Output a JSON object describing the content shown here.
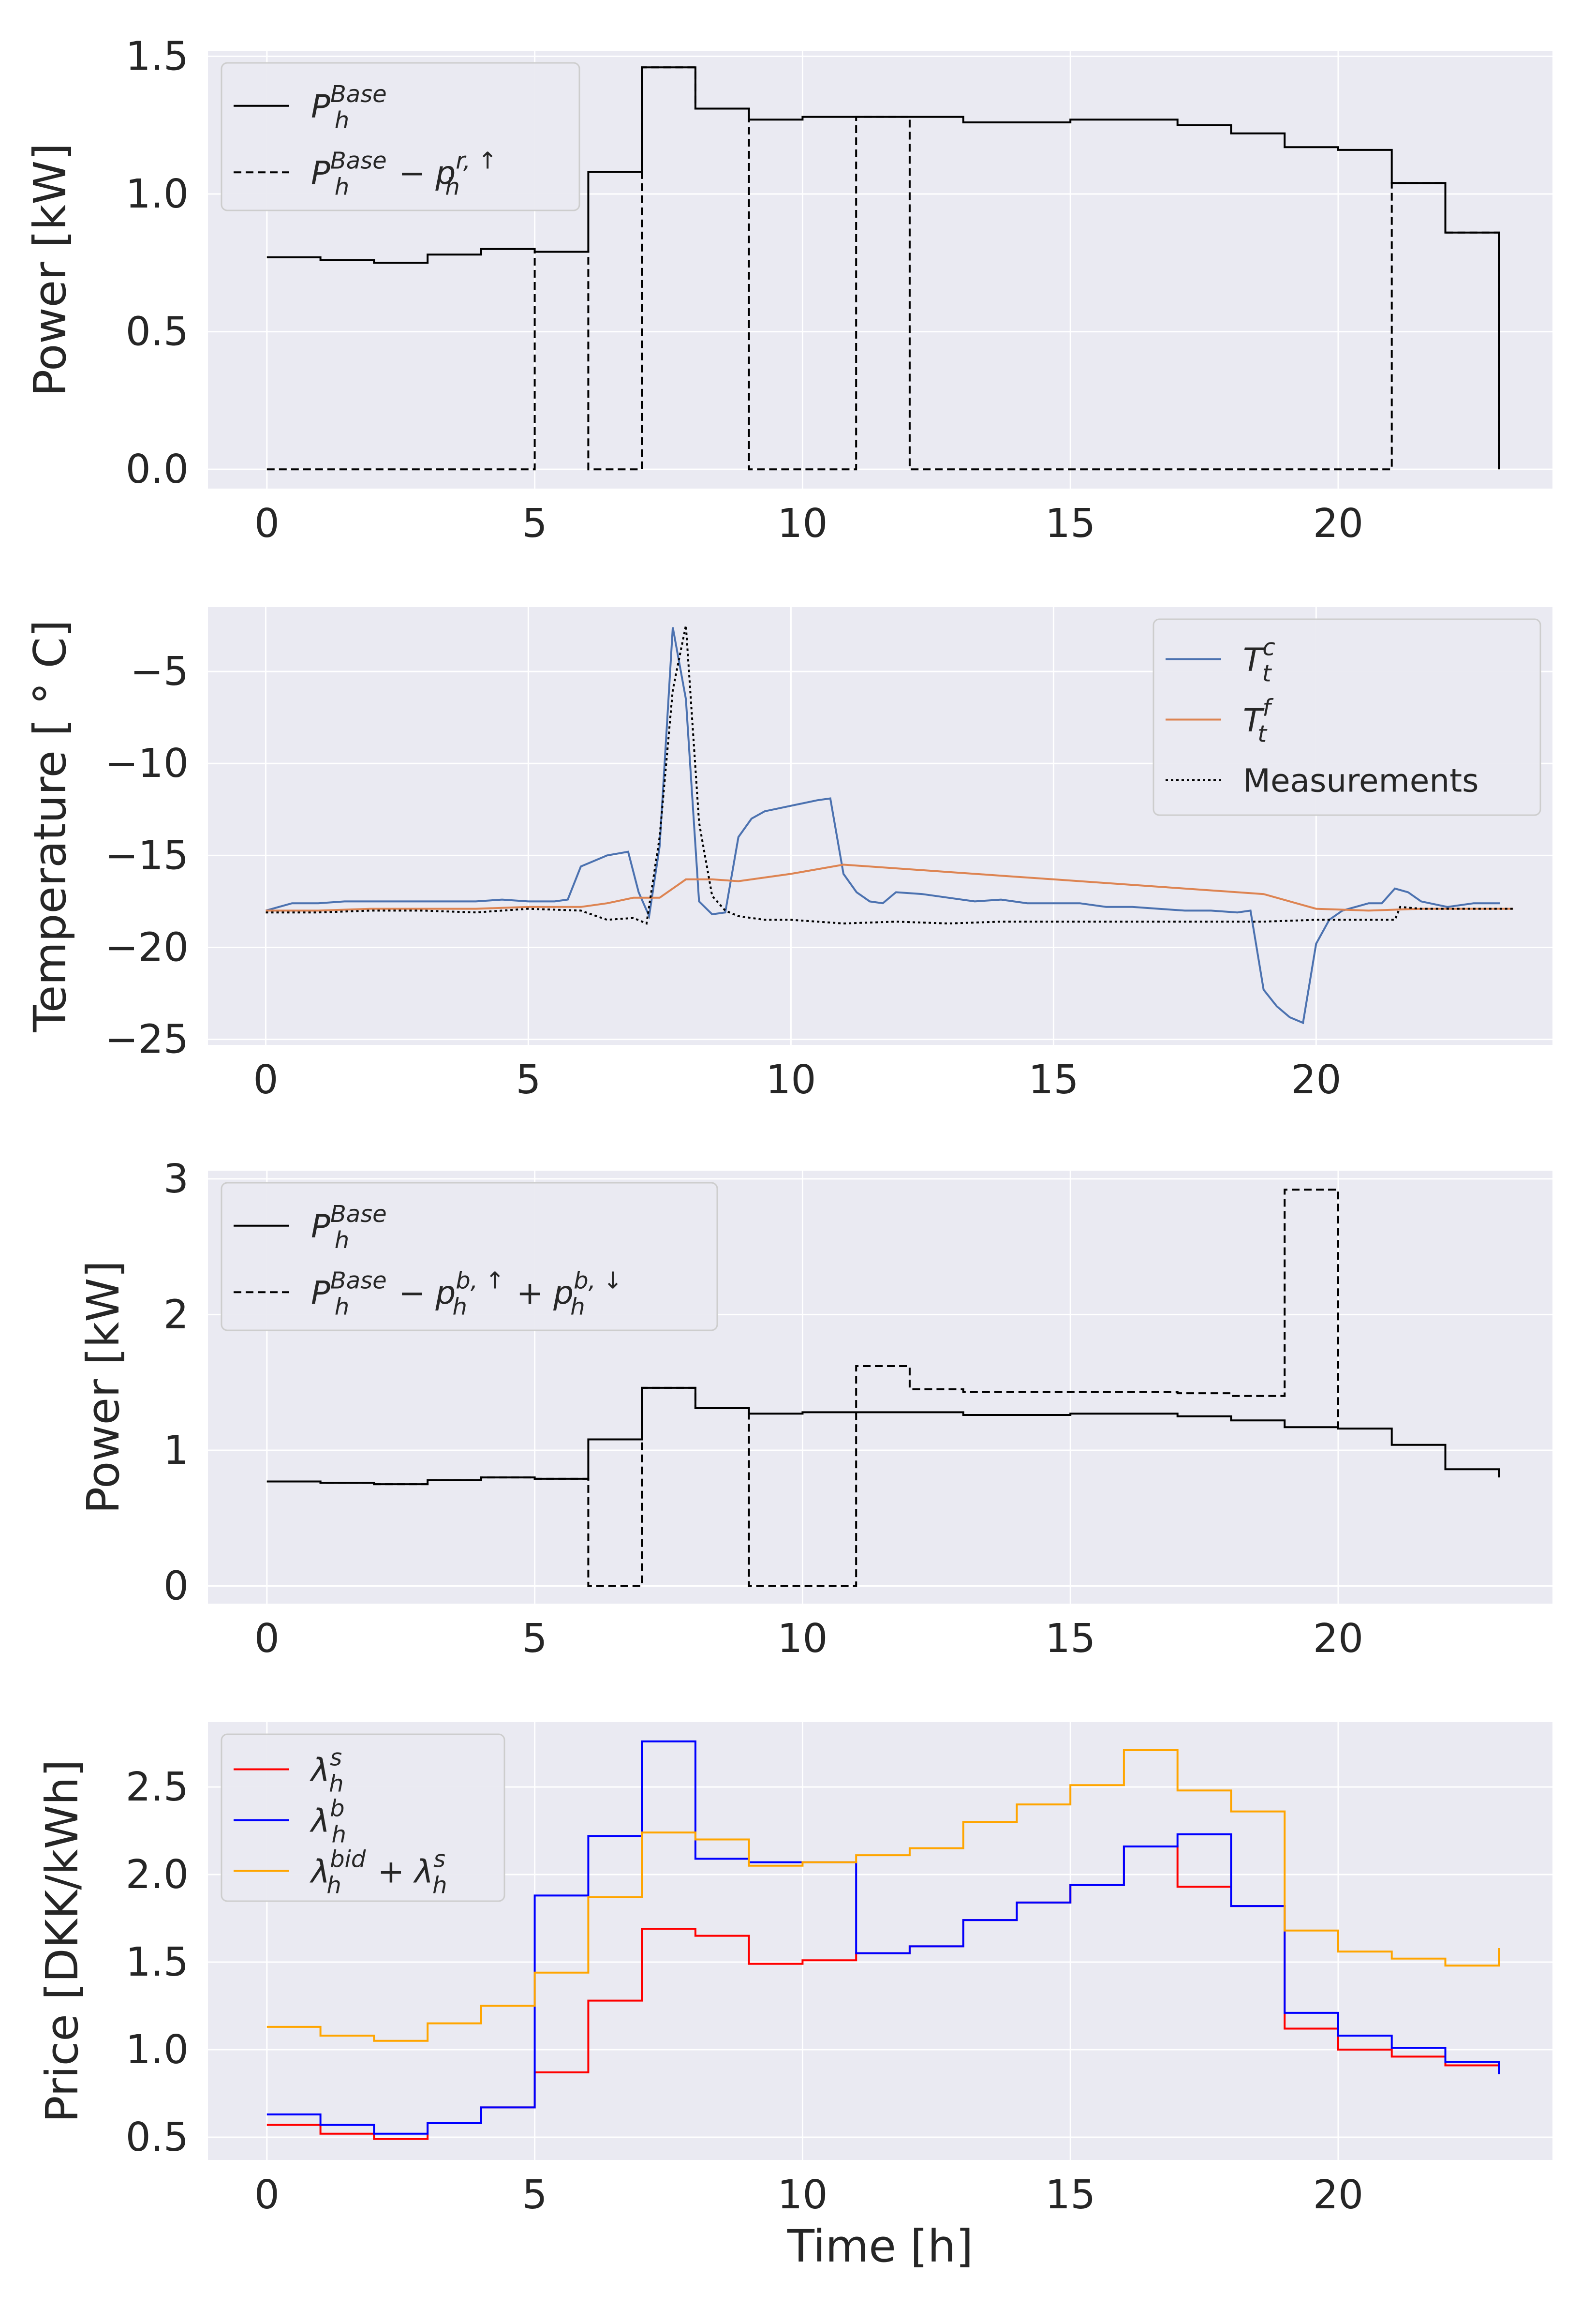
{
  "chart_data": [
    {
      "type": "line",
      "title": "",
      "xlabel": "",
      "ylabel": "Power [kW]",
      "xlim": [
        -1.1,
        24
      ],
      "ylim": [
        -0.07,
        1.52
      ],
      "xticks": [
        0,
        5,
        10,
        15,
        20
      ],
      "xtick_labels": [
        "0",
        "5",
        "10",
        "15",
        "20"
      ],
      "yticks": [
        0.0,
        0.5,
        1.0,
        1.5
      ],
      "ytick_labels": [
        "0.0",
        "0.5",
        "1.0",
        "1.5"
      ],
      "legend_position": "top-left",
      "series": [
        {
          "name": "P_h^Base",
          "legend_label": "P",
          "legend_sup": "Base",
          "legend_sub": "h",
          "legend_rest": "",
          "style": "solid",
          "color": "#000000",
          "draw": "step",
          "x": [
            0,
            1,
            2,
            3,
            4,
            5,
            6,
            7,
            8,
            9,
            10,
            11,
            12,
            13,
            14,
            15,
            16,
            17,
            18,
            19,
            20,
            21,
            22,
            23
          ],
          "values": [
            0.77,
            0.76,
            0.75,
            0.78,
            0.8,
            0.79,
            1.08,
            1.46,
            1.31,
            1.27,
            1.28,
            1.28,
            1.28,
            1.26,
            1.26,
            1.27,
            1.27,
            1.25,
            1.22,
            1.17,
            1.16,
            1.04,
            0.86,
            0.0
          ]
        },
        {
          "name": "P_h^Base - p_h^r,up",
          "legend_label": "P",
          "legend_sup": "Base",
          "legend_sub": "h",
          "legend_rest": " − p",
          "legend_sup2": "r, ↑",
          "legend_sub2": "h",
          "style": "dashed",
          "color": "#000000",
          "draw": "step",
          "x": [
            0,
            1,
            2,
            3,
            4,
            5,
            6,
            7,
            8,
            9,
            10,
            11,
            12,
            13,
            14,
            15,
            16,
            17,
            18,
            19,
            20,
            21,
            22,
            23
          ],
          "values": [
            0,
            0,
            0,
            0,
            0,
            0.79,
            0,
            1.46,
            1.31,
            0,
            0,
            1.28,
            0,
            0,
            0,
            0,
            0,
            0,
            0,
            0,
            0,
            1.04,
            0.86,
            0.0
          ]
        }
      ]
    },
    {
      "type": "line",
      "title": "",
      "xlabel": "",
      "ylabel": "Temperature [ ° C]",
      "xlim": [
        -1.1,
        24.5
      ],
      "ylim": [
        -25.3,
        -1.5
      ],
      "xticks": [
        0,
        5,
        10,
        15,
        20
      ],
      "xtick_labels": [
        "0",
        "5",
        "10",
        "15",
        "20"
      ],
      "yticks": [
        -5,
        -10,
        -15,
        -20,
        -25
      ],
      "ytick_labels": [
        "−5",
        "−10",
        "−15",
        "−20",
        "−25"
      ],
      "legend_position": "top-right",
      "series": [
        {
          "name": "T_t^c",
          "legend_label": "T",
          "legend_sup": "c",
          "legend_sub": "t",
          "style": "solid",
          "color": "#4c72b0",
          "draw": "line",
          "x": [
            0,
            0.25,
            0.5,
            0.75,
            1,
            1.5,
            2,
            2.5,
            3,
            3.5,
            4,
            4.5,
            5,
            5.5,
            5.75,
            6,
            6.5,
            6.9,
            7.1,
            7.3,
            7.5,
            7.75,
            8,
            8.25,
            8.5,
            8.75,
            9,
            9.25,
            9.5,
            10,
            10.5,
            10.75,
            11,
            11.25,
            11.5,
            11.75,
            12,
            12.5,
            13,
            13.5,
            14,
            14.5,
            15,
            15.5,
            16,
            16.5,
            17,
            17.5,
            18,
            18.5,
            18.75,
            19,
            19.25,
            19.5,
            19.75,
            20,
            20.25,
            20.5,
            20.75,
            21,
            21.25,
            21.5,
            21.75,
            22,
            22.5,
            23,
            23.5
          ],
          "values": [
            -18,
            -17.8,
            -17.6,
            -17.6,
            -17.6,
            -17.5,
            -17.5,
            -17.5,
            -17.5,
            -17.5,
            -17.5,
            -17.4,
            -17.5,
            -17.5,
            -17.4,
            -15.6,
            -15,
            -14.8,
            -17,
            -18.3,
            -14.5,
            -2.6,
            -6.5,
            -17.5,
            -18.2,
            -18.1,
            -14,
            -13,
            -12.6,
            -12.3,
            -12,
            -11.9,
            -16,
            -17,
            -17.5,
            -17.6,
            -17,
            -17.1,
            -17.3,
            -17.5,
            -17.4,
            -17.6,
            -17.6,
            -17.6,
            -17.8,
            -17.8,
            -17.9,
            -18,
            -18,
            -18.1,
            -18,
            -22.3,
            -23.2,
            -23.8,
            -24.1,
            -19.8,
            -18.5,
            -18,
            -17.8,
            -17.6,
            -17.6,
            -16.8,
            -17,
            -17.5,
            -17.8,
            -17.6,
            -17.6
          ]
        },
        {
          "name": "T_t^f",
          "legend_label": "T",
          "legend_sup": "f",
          "legend_sub": "t",
          "style": "solid",
          "color": "#dd8452",
          "draw": "line",
          "x": [
            0,
            1,
            2,
            3,
            4,
            5,
            6,
            6.5,
            7,
            7.5,
            8,
            8.5,
            9,
            10,
            11,
            12,
            13,
            14,
            15,
            16,
            17,
            18,
            19,
            20,
            21,
            22,
            23,
            23.75
          ],
          "values": [
            -18,
            -18,
            -17.9,
            -17.9,
            -17.9,
            -17.8,
            -17.8,
            -17.6,
            -17.3,
            -17.3,
            -16.3,
            -16.3,
            -16.4,
            -16,
            -15.5,
            -15.7,
            -15.9,
            -16.1,
            -16.3,
            -16.5,
            -16.7,
            -16.9,
            -17.1,
            -17.9,
            -18,
            -17.9,
            -17.9,
            -17.9
          ]
        },
        {
          "name": "Measurements",
          "legend_label": "Measurements",
          "style": "dotted",
          "color": "#000000",
          "draw": "line",
          "x": [
            0,
            1,
            2,
            3,
            4,
            5,
            6,
            6.5,
            7,
            7.25,
            7.5,
            7.75,
            8,
            8.25,
            8.5,
            8.75,
            9,
            9.5,
            10,
            11,
            12,
            13,
            14,
            15,
            16,
            17,
            18,
            19,
            20,
            21,
            21.5,
            21.6,
            22,
            23,
            23.75
          ],
          "values": [
            -18.1,
            -18.1,
            -18,
            -18,
            -18.1,
            -17.9,
            -18,
            -18.5,
            -18.4,
            -18.7,
            -14,
            -6,
            -2.5,
            -13.2,
            -17.2,
            -18,
            -18.3,
            -18.5,
            -18.5,
            -18.7,
            -18.6,
            -18.7,
            -18.6,
            -18.6,
            -18.6,
            -18.6,
            -18.6,
            -18.6,
            -18.5,
            -18.5,
            -18.5,
            -17.8,
            -17.9,
            -17.9,
            -17.9
          ]
        }
      ]
    },
    {
      "type": "line",
      "title": "",
      "xlabel": "",
      "ylabel": "Power [kW]",
      "xlim": [
        -1.1,
        24
      ],
      "ylim": [
        -0.13,
        3.06
      ],
      "xticks": [
        0,
        5,
        10,
        15,
        20
      ],
      "xtick_labels": [
        "0",
        "5",
        "10",
        "15",
        "20"
      ],
      "yticks": [
        0,
        1,
        2,
        3
      ],
      "ytick_labels": [
        "0",
        "1",
        "2",
        "3"
      ],
      "legend_position": "top-left",
      "series": [
        {
          "name": "P_h^Base",
          "legend_label": "P",
          "legend_sup": "Base",
          "legend_sub": "h",
          "style": "solid",
          "color": "#000000",
          "draw": "step",
          "x": [
            0,
            1,
            2,
            3,
            4,
            5,
            6,
            7,
            8,
            9,
            10,
            11,
            12,
            13,
            14,
            15,
            16,
            17,
            18,
            19,
            20,
            21,
            22,
            23
          ],
          "values": [
            0.77,
            0.76,
            0.75,
            0.78,
            0.8,
            0.79,
            1.08,
            1.46,
            1.31,
            1.27,
            1.28,
            1.28,
            1.28,
            1.26,
            1.26,
            1.27,
            1.27,
            1.25,
            1.22,
            1.17,
            1.16,
            1.04,
            0.86,
            0.8
          ]
        },
        {
          "name": "P_h^Base - p_h^b,up + p_h^b,down",
          "legend_label": "P",
          "legend_sup": "Base",
          "legend_sub": "h",
          "legend_rest": " − p",
          "legend_sup2": "b, ↑",
          "legend_sub2": "h",
          "legend_rest2": " + p",
          "legend_sup3": "b, ↓",
          "legend_sub3": "h",
          "style": "dashed",
          "color": "#000000",
          "draw": "step",
          "x": [
            0,
            1,
            2,
            3,
            4,
            5,
            6,
            7,
            8,
            9,
            10,
            11,
            12,
            13,
            14,
            15,
            16,
            17,
            18,
            19,
            20
          ],
          "values": [
            0.77,
            0.76,
            0.75,
            0.78,
            0.8,
            0.79,
            0,
            1.46,
            1.31,
            0,
            0,
            1.62,
            1.45,
            1.43,
            1.43,
            1.43,
            1.43,
            1.42,
            1.4,
            2.92,
            1.16
          ]
        }
      ]
    },
    {
      "type": "line",
      "title": "",
      "xlabel": "Time [h]",
      "ylabel": "Price [DKK/kWh]",
      "xlim": [
        -1.1,
        24
      ],
      "ylim": [
        0.37,
        2.87
      ],
      "xticks": [
        0,
        5,
        10,
        15,
        20
      ],
      "xtick_labels": [
        "0",
        "5",
        "10",
        "15",
        "20"
      ],
      "yticks": [
        0.5,
        1.0,
        1.5,
        2.0,
        2.5
      ],
      "ytick_labels": [
        "0.5",
        "1.0",
        "1.5",
        "2.0",
        "2.5"
      ],
      "legend_position": "top-left",
      "series": [
        {
          "name": "lambda_h^s",
          "legend_label": "λ",
          "legend_sup": "s",
          "legend_sub": "h",
          "style": "solid",
          "color": "#ff0000",
          "draw": "step",
          "x": [
            0,
            1,
            2,
            3,
            4,
            5,
            6,
            7,
            8,
            9,
            10,
            11,
            12,
            13,
            14,
            15,
            16,
            17,
            18,
            19,
            20,
            21,
            22,
            23
          ],
          "values": [
            0.57,
            0.52,
            0.49,
            0.58,
            0.67,
            0.87,
            1.28,
            1.69,
            1.65,
            1.49,
            1.51,
            1.55,
            1.59,
            1.74,
            1.84,
            1.94,
            2.16,
            1.93,
            1.82,
            1.12,
            1.0,
            0.96,
            0.91,
            0.88
          ]
        },
        {
          "name": "lambda_h^b",
          "legend_label": "λ",
          "legend_sup": "b",
          "legend_sub": "h",
          "style": "solid",
          "color": "#0000ff",
          "draw": "step",
          "x": [
            0,
            1,
            2,
            3,
            4,
            5,
            6,
            7,
            8,
            9,
            10,
            11,
            12,
            13,
            14,
            15,
            16,
            17,
            18,
            19,
            20,
            21,
            22,
            23
          ],
          "values": [
            0.63,
            0.57,
            0.52,
            0.58,
            0.67,
            1.88,
            2.22,
            2.76,
            2.09,
            2.07,
            2.07,
            1.55,
            1.59,
            1.74,
            1.84,
            1.94,
            2.16,
            2.23,
            1.82,
            1.21,
            1.08,
            1.01,
            0.93,
            0.86
          ]
        },
        {
          "name": "lambda_h^bid + lambda_h^s",
          "legend_label": "λ",
          "legend_sup": "bid",
          "legend_sub": "h",
          "legend_rest": " + λ",
          "legend_sup2": "s",
          "legend_sub2": "h",
          "style": "solid",
          "color": "#ffa500",
          "draw": "step",
          "x": [
            0,
            1,
            2,
            3,
            4,
            5,
            6,
            7,
            8,
            9,
            10,
            11,
            12,
            13,
            14,
            15,
            16,
            17,
            18,
            19,
            20,
            21,
            22,
            23
          ],
          "values": [
            1.13,
            1.08,
            1.05,
            1.15,
            1.25,
            1.44,
            1.87,
            2.24,
            2.2,
            2.05,
            2.07,
            2.11,
            2.15,
            2.3,
            2.4,
            2.51,
            2.71,
            2.48,
            2.36,
            1.68,
            1.56,
            1.52,
            1.48,
            1.58
          ]
        }
      ]
    }
  ]
}
